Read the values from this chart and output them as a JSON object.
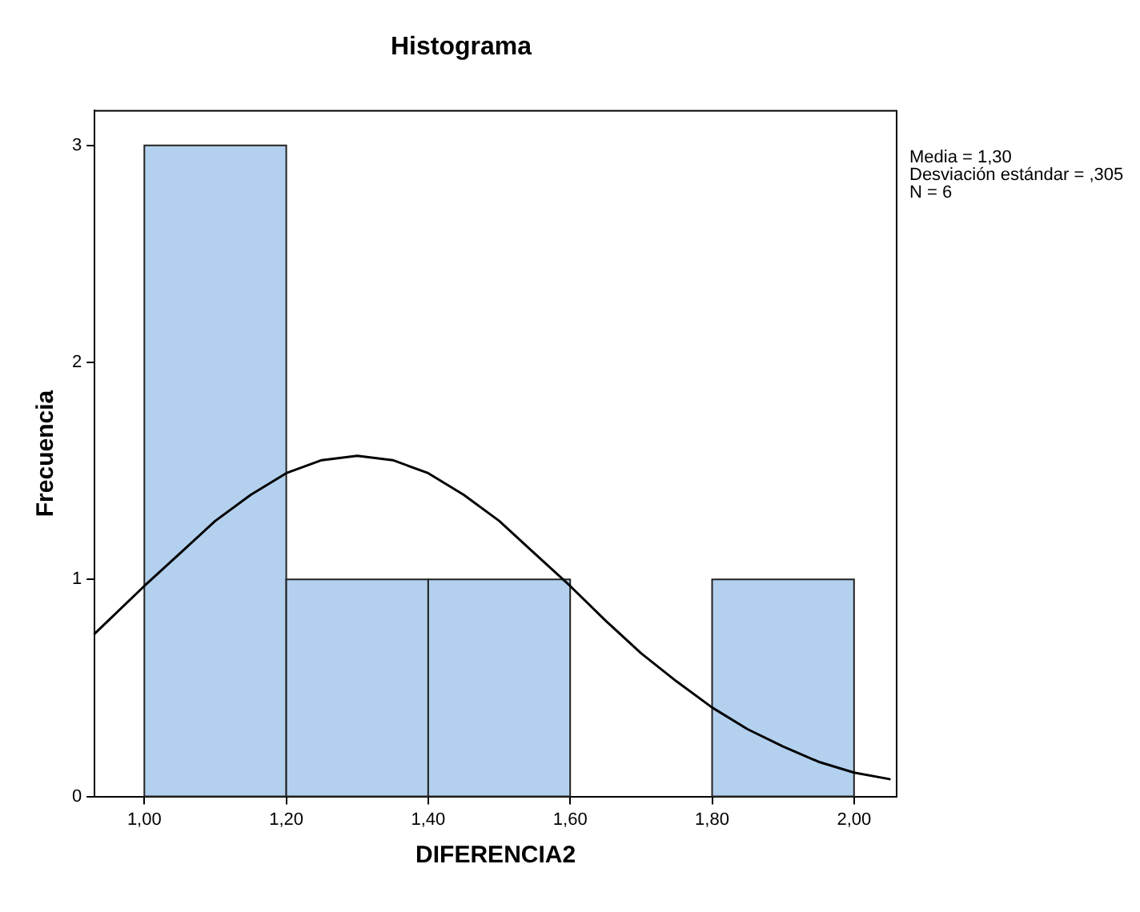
{
  "chart_data": {
    "type": "histogram",
    "title": "Histograma",
    "xlabel": "DIFERENCIA2",
    "ylabel": "Frecuencia",
    "bins": [
      1.0,
      1.2,
      1.4,
      1.6,
      1.8,
      2.0
    ],
    "values": [
      3,
      1,
      1,
      0,
      1
    ],
    "color": "#b3d1ee",
    "series": [
      {
        "type": "line",
        "color": "#000000",
        "marker": "none",
        "x": [
          0.93,
          1.0,
          1.05,
          1.1,
          1.15,
          1.2,
          1.25,
          1.3,
          1.35,
          1.4,
          1.45,
          1.5,
          1.55,
          1.6,
          1.65,
          1.7,
          1.75,
          1.8,
          1.85,
          1.9,
          1.95,
          2.0,
          2.05
        ],
        "values": [
          0.75,
          0.97,
          1.12,
          1.27,
          1.39,
          1.49,
          1.55,
          1.57,
          1.55,
          1.49,
          1.39,
          1.27,
          1.12,
          0.97,
          0.81,
          0.66,
          0.53,
          0.41,
          0.31,
          0.23,
          0.16,
          0.11,
          0.08
        ]
      }
    ],
    "xlim": [
      0.93,
      2.06
    ],
    "xticks": [
      {
        "value": 1.0,
        "label": "1,00"
      },
      {
        "value": 1.2,
        "label": "1,20"
      },
      {
        "value": 1.4,
        "label": "1,40"
      },
      {
        "value": 1.6,
        "label": "1,60"
      },
      {
        "value": 1.8,
        "label": "1,80"
      },
      {
        "value": 2.0,
        "label": "2,00"
      }
    ],
    "ylim": [
      0,
      3.16
    ],
    "yticks": [
      0,
      1,
      2,
      3
    ],
    "annotations": [
      "Media = 1,30",
      "Desviación estándar = ,305",
      "N = 6"
    ]
  }
}
